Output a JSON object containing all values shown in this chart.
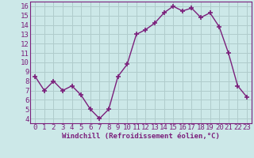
{
  "x": [
    0,
    1,
    2,
    3,
    4,
    5,
    6,
    7,
    8,
    9,
    10,
    11,
    12,
    13,
    14,
    15,
    16,
    17,
    18,
    19,
    20,
    21,
    22,
    23
  ],
  "y": [
    8.5,
    7.0,
    8.0,
    7.0,
    7.5,
    6.5,
    5.0,
    4.0,
    5.0,
    8.5,
    9.8,
    13.0,
    13.5,
    14.2,
    15.3,
    16.0,
    15.5,
    15.8,
    14.8,
    15.3,
    13.8,
    11.0,
    7.5,
    6.3
  ],
  "line_color": "#7b1f7b",
  "marker": "+",
  "marker_size": 4,
  "bg_color": "#cce8e8",
  "grid_color": "#b0cccc",
  "xlabel": "Windchill (Refroidissement éolien,°C)",
  "xlim": [
    -0.5,
    23.5
  ],
  "ylim": [
    3.5,
    16.5
  ],
  "yticks": [
    4,
    5,
    6,
    7,
    8,
    9,
    10,
    11,
    12,
    13,
    14,
    15,
    16
  ],
  "xticks": [
    0,
    1,
    2,
    3,
    4,
    5,
    6,
    7,
    8,
    9,
    10,
    11,
    12,
    13,
    14,
    15,
    16,
    17,
    18,
    19,
    20,
    21,
    22,
    23
  ],
  "tick_label_color": "#7b1f7b",
  "axis_color": "#7b1f7b",
  "xlabel_color": "#7b1f7b",
  "xlabel_fontsize": 6.5,
  "tick_fontsize": 6.5,
  "linewidth": 1.0,
  "marker_edge_width": 1.2
}
